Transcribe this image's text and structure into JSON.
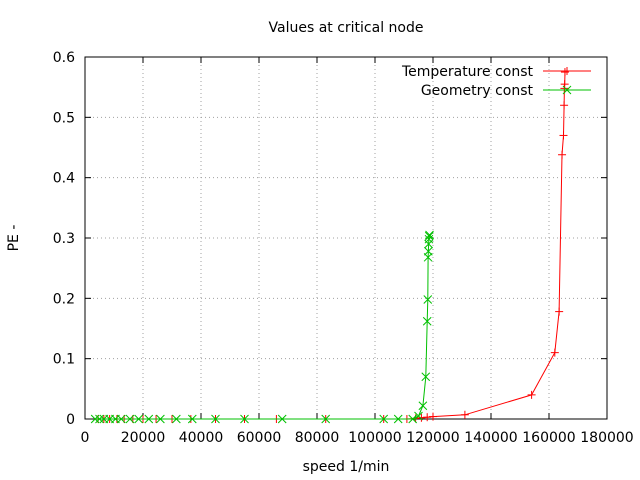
{
  "chart_data": {
    "type": "line",
    "title": "Values at critical node",
    "xlabel": "speed 1/min",
    "ylabel": "PE -",
    "xlim": [
      0,
      180000
    ],
    "ylim": [
      0,
      0.6
    ],
    "xticks": [
      0,
      20000,
      40000,
      60000,
      80000,
      100000,
      120000,
      140000,
      160000,
      180000
    ],
    "yticks": [
      0,
      0.1,
      0.2,
      0.3,
      0.4,
      0.5,
      0.6
    ],
    "xtick_labels": [
      "0",
      "20000",
      "40000",
      "60000",
      "80000",
      "100000",
      "120000",
      "140000",
      "160000",
      "180000"
    ],
    "ytick_labels": [
      "0",
      "0.1",
      "0.2",
      "0.3",
      "0.4",
      "0.5",
      "0.6"
    ],
    "grid": true,
    "legend_position": "top-right",
    "series": [
      {
        "name": "Temperature const",
        "color": "#ff0000",
        "marker": "plus",
        "x": [
          4500,
          6500,
          8500,
          11000,
          13500,
          16500,
          20000,
          24500,
          30000,
          36500,
          45000,
          55000,
          66000,
          83000,
          103000,
          111000,
          114000,
          116000,
          118000,
          120000,
          131000,
          154000,
          162000,
          163500,
          164500,
          165000,
          165200,
          165300,
          165400,
          165500
        ],
        "y": [
          0,
          0,
          0,
          0,
          0,
          0,
          0,
          0,
          0,
          0,
          0,
          0,
          0,
          0,
          0,
          0,
          0.001,
          0.002,
          0.003,
          0.004,
          0.007,
          0.04,
          0.11,
          0.178,
          0.438,
          0.47,
          0.52,
          0.548,
          0.555,
          0.575
        ]
      },
      {
        "name": "Geometry const",
        "color": "#00c000",
        "marker": "cross",
        "x": [
          3500,
          5000,
          6500,
          8500,
          10500,
          12500,
          15500,
          18500,
          22000,
          26000,
          31500,
          37000,
          45000,
          55000,
          68000,
          83000,
          103000,
          108000,
          113000,
          115000,
          116500,
          117500,
          118000,
          118200,
          118300,
          118400,
          118500,
          118600,
          118700,
          118800
        ],
        "y": [
          0,
          0,
          0,
          0,
          0,
          0,
          0,
          0,
          0,
          0,
          0,
          0,
          0,
          0,
          0,
          0,
          0,
          0,
          0,
          0.005,
          0.022,
          0.07,
          0.162,
          0.198,
          0.268,
          0.278,
          0.29,
          0.298,
          0.303,
          0.305
        ]
      }
    ]
  }
}
